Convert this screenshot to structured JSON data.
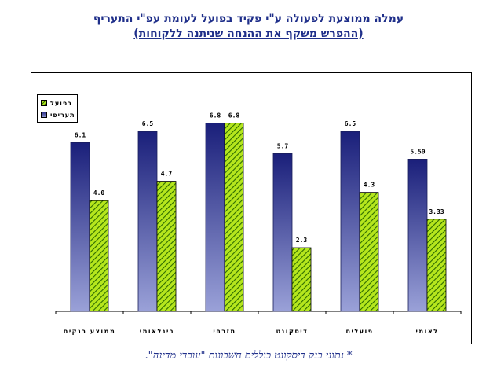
{
  "title": "עמלה ממוצעת לפעולה ע\"י פקיד בפועל לעומת עפ\"י התעריף",
  "subtitle": "(ההפרש משקף את ההנחה שניתנה ללקוחות)",
  "footnote": "* נתוני בנק דיסקונט כוללים חשבונות \"עובדי מדינה\".",
  "colors": {
    "tariff_top": "#1a1f7a",
    "tariff_bottom": "#9aa1d8",
    "actual_fill": "#b5e61d",
    "actual_hatch": "#2d6b00",
    "title": "#1f2f8a"
  },
  "chart_data": {
    "type": "bar",
    "legend_position": "top-left",
    "grid": false,
    "ylim": [
      0,
      7.5
    ],
    "categories": [
      "ממוצע בנקים",
      "בינלאומי",
      "מזרחי",
      "דיסקונט",
      "פועלים",
      "לאומי"
    ],
    "series": [
      {
        "name": "תעריפי",
        "values": [
          6.1,
          6.5,
          6.8,
          5.7,
          6.5,
          5.5
        ],
        "labels": [
          "6.1",
          "6.5",
          "6.8",
          "5.7",
          "6.5",
          "5.50"
        ]
      },
      {
        "name": "בפועל",
        "values": [
          4.0,
          4.7,
          6.8,
          2.3,
          4.3,
          3.33
        ],
        "labels": [
          "4.0",
          "4.7",
          "6.8",
          "2.3",
          "4.3",
          "3.33"
        ]
      }
    ]
  }
}
